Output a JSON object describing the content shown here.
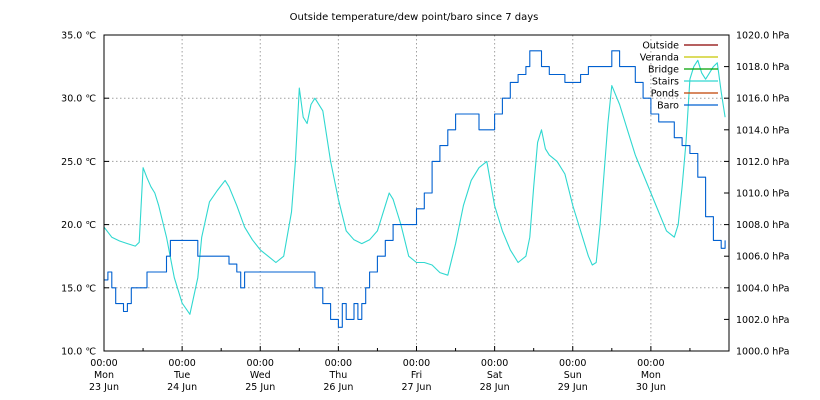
{
  "chart_data": {
    "type": "line",
    "title": "Outside temperature/dew point/baro since 7 days",
    "xlabel": "",
    "ylabel": "",
    "y2label": "",
    "grid": true,
    "legend_position": "top-right",
    "xlim": [
      0,
      8
    ],
    "ylim": [
      10,
      35
    ],
    "y2lim": [
      1000,
      1020
    ],
    "x_ticks": [
      {
        "x": 0,
        "time": "00:00",
        "day": "Mon",
        "date": "23 Jun"
      },
      {
        "x": 1,
        "time": "00:00",
        "day": "Tue",
        "date": "24 Jun"
      },
      {
        "x": 2,
        "time": "00:00",
        "day": "Wed",
        "date": "25 Jun"
      },
      {
        "x": 3,
        "time": "00:00",
        "day": "Thu",
        "date": "26 Jun"
      },
      {
        "x": 4,
        "time": "00:00",
        "day": "Fri",
        "date": "27 Jun"
      },
      {
        "x": 5,
        "time": "00:00",
        "day": "Sat",
        "date": "28 Jun"
      },
      {
        "x": 6,
        "time": "00:00",
        "day": "Sun",
        "date": "29 Jun"
      },
      {
        "x": 7,
        "time": "00:00",
        "day": "Mon",
        "date": "30 Jun"
      }
    ],
    "y_ticks": [
      {
        "value": 10,
        "label": "10.0 ℃"
      },
      {
        "value": 15,
        "label": "15.0 ℃"
      },
      {
        "value": 20,
        "label": "20.0 ℃"
      },
      {
        "value": 25,
        "label": "25.0 ℃"
      },
      {
        "value": 30,
        "label": "30.0 ℃"
      },
      {
        "value": 35,
        "label": "35.0 ℃"
      }
    ],
    "y2_ticks": [
      {
        "value": 1000,
        "label": "1000.0 hPa"
      },
      {
        "value": 1002,
        "label": "1002.0 hPa"
      },
      {
        "value": 1004,
        "label": "1004.0 hPa"
      },
      {
        "value": 1006,
        "label": "1006.0 hPa"
      },
      {
        "value": 1008,
        "label": "1008.0 hPa"
      },
      {
        "value": 1010,
        "label": "1010.0 hPa"
      },
      {
        "value": 1012,
        "label": "1012.0 hPa"
      },
      {
        "value": 1014,
        "label": "1014.0 hPa"
      },
      {
        "value": 1016,
        "label": "1016.0 hPa"
      },
      {
        "value": 1018,
        "label": "1018.0 hPa"
      },
      {
        "value": 1020,
        "label": "1020.0 hPa"
      }
    ],
    "legend": [
      {
        "name": "Outside",
        "color": "#8b0000"
      },
      {
        "name": "Veranda",
        "color": "#c8c800"
      },
      {
        "name": "Bridge",
        "color": "#00a000"
      },
      {
        "name": "Stairs",
        "color": "#30d8d0"
      },
      {
        "name": "Ponds",
        "color": "#c04000"
      },
      {
        "name": "Baro",
        "color": "#0060d0"
      }
    ],
    "series": [
      {
        "name": "Stairs",
        "axis": "left",
        "color": "#30d8d0",
        "x": [
          0,
          0.1,
          0.2,
          0.3,
          0.4,
          0.45,
          0.5,
          0.55,
          0.6,
          0.65,
          0.7,
          0.8,
          0.9,
          1.0,
          1.1,
          1.2,
          1.25,
          1.35,
          1.45,
          1.55,
          1.6,
          1.7,
          1.8,
          1.9,
          2.0,
          2.1,
          2.2,
          2.3,
          2.4,
          2.45,
          2.5,
          2.55,
          2.6,
          2.65,
          2.7,
          2.8,
          2.9,
          3.0,
          3.1,
          3.2,
          3.3,
          3.4,
          3.5,
          3.6,
          3.65,
          3.7,
          3.75,
          3.8,
          3.9,
          4.0,
          4.1,
          4.2,
          4.3,
          4.4,
          4.5,
          4.6,
          4.7,
          4.8,
          4.9,
          5.0,
          5.1,
          5.2,
          5.3,
          5.4,
          5.45,
          5.5,
          5.55,
          5.6,
          5.65,
          5.7,
          5.8,
          5.9,
          6.0,
          6.1,
          6.2,
          6.25,
          6.3,
          6.35,
          6.4,
          6.45,
          6.5,
          6.6,
          6.7,
          6.8,
          6.9,
          7.0,
          7.1,
          7.2,
          7.3,
          7.35,
          7.4,
          7.45,
          7.5,
          7.55,
          7.6,
          7.65,
          7.7,
          7.75,
          7.8,
          7.85,
          7.9,
          7.95
        ],
        "values": [
          19.8,
          19.0,
          18.7,
          18.5,
          18.3,
          18.6,
          24.5,
          23.7,
          23.0,
          22.5,
          21.5,
          19.0,
          15.8,
          13.8,
          12.9,
          15.8,
          19.0,
          21.8,
          22.7,
          23.5,
          23.0,
          21.5,
          19.8,
          18.8,
          18.0,
          17.5,
          17.0,
          17.5,
          21.0,
          25.0,
          30.8,
          28.5,
          28.0,
          29.5,
          30.0,
          29.0,
          25.0,
          22.0,
          19.5,
          18.8,
          18.5,
          18.8,
          19.5,
          21.5,
          22.5,
          22.0,
          21.0,
          20.0,
          17.5,
          17.0,
          17.0,
          16.8,
          16.2,
          16.0,
          18.5,
          21.5,
          23.5,
          24.5,
          25.0,
          21.5,
          19.5,
          18.0,
          17.0,
          17.5,
          19.0,
          23.0,
          26.5,
          27.5,
          26.0,
          25.5,
          25.0,
          24.0,
          21.5,
          19.5,
          17.5,
          16.8,
          17.0,
          20.0,
          24.0,
          28.0,
          31.0,
          29.5,
          27.5,
          25.5,
          24.0,
          22.5,
          21.0,
          19.5,
          19.0,
          20.0,
          23.0,
          26.5,
          31.5,
          32.5,
          33.0,
          32.0,
          31.5,
          32.0,
          32.5,
          32.8,
          30.5,
          28.5
        ]
      },
      {
        "name": "Baro",
        "axis": "right",
        "color": "#0060d0",
        "x": [
          0,
          0.05,
          0.1,
          0.15,
          0.2,
          0.25,
          0.3,
          0.35,
          0.4,
          0.45,
          0.5,
          0.55,
          0.6,
          0.7,
          0.8,
          0.85,
          0.9,
          1.0,
          1.1,
          1.2,
          1.3,
          1.4,
          1.5,
          1.6,
          1.7,
          1.75,
          1.8,
          1.85,
          1.9,
          2.0,
          2.1,
          2.2,
          2.3,
          2.4,
          2.5,
          2.6,
          2.7,
          2.8,
          2.9,
          2.95,
          3.0,
          3.05,
          3.1,
          3.15,
          3.2,
          3.25,
          3.3,
          3.35,
          3.4,
          3.5,
          3.6,
          3.7,
          3.8,
          3.9,
          4.0,
          4.1,
          4.2,
          4.3,
          4.4,
          4.5,
          4.6,
          4.7,
          4.8,
          4.9,
          5.0,
          5.1,
          5.2,
          5.3,
          5.4,
          5.45,
          5.5,
          5.6,
          5.7,
          5.8,
          5.9,
          6.0,
          6.1,
          6.2,
          6.3,
          6.4,
          6.5,
          6.6,
          6.7,
          6.8,
          6.9,
          7.0,
          7.1,
          7.2,
          7.3,
          7.4,
          7.5,
          7.6,
          7.7,
          7.8,
          7.9,
          7.95
        ],
        "values": [
          1004.5,
          1005.0,
          1004.0,
          1003.0,
          1003.0,
          1002.5,
          1003.0,
          1004.0,
          1004.0,
          1004.0,
          1004.0,
          1005.0,
          1005.0,
          1005.0,
          1006.0,
          1007.0,
          1007.0,
          1007.0,
          1007.0,
          1006.0,
          1006.0,
          1006.0,
          1006.0,
          1005.5,
          1005.0,
          1004.0,
          1005.0,
          1005.0,
          1005.0,
          1005.0,
          1005.0,
          1005.0,
          1005.0,
          1005.0,
          1005.0,
          1005.0,
          1004.0,
          1003.0,
          1002.0,
          1002.0,
          1001.5,
          1003.0,
          1002.0,
          1002.0,
          1003.0,
          1002.0,
          1003.0,
          1004.0,
          1005.0,
          1006.0,
          1007.0,
          1008.0,
          1008.0,
          1008.0,
          1009.0,
          1010.0,
          1012.0,
          1013.0,
          1014.0,
          1015.0,
          1015.0,
          1015.0,
          1014.0,
          1014.0,
          1015.0,
          1016.0,
          1017.0,
          1017.5,
          1018.0,
          1019.0,
          1019.0,
          1018.0,
          1017.5,
          1017.5,
          1017.0,
          1017.0,
          1017.5,
          1018.0,
          1018.0,
          1018.0,
          1019.0,
          1018.0,
          1018.0,
          1017.0,
          1016.0,
          1015.0,
          1014.5,
          1014.5,
          1013.5,
          1013.0,
          1012.5,
          1011.0,
          1008.5,
          1007.0,
          1006.5,
          1007.0
        ]
      }
    ]
  }
}
